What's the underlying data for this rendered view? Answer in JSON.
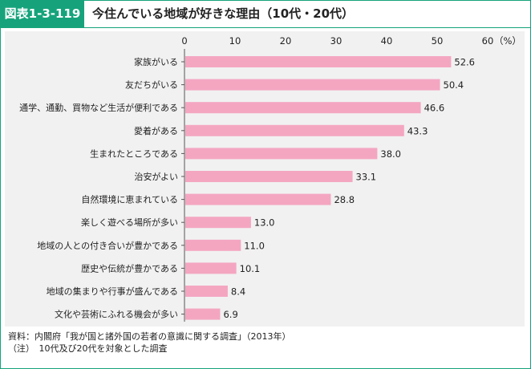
{
  "header": {
    "figure_label": "図表1-3-119",
    "title": "今住んでいる地域が好きな理由（10代・20代）"
  },
  "chart_data": {
    "type": "bar",
    "orientation": "horizontal",
    "unit_label": "（%）",
    "xlim": [
      0,
      60
    ],
    "ticks": [
      0,
      10,
      20,
      30,
      40,
      50,
      60
    ],
    "bar_color": "#f4a6c1",
    "categories": [
      "家族がいる",
      "友だちがいる",
      "通学、通勤、買物など生活が便利である",
      "愛着がある",
      "生まれたところである",
      "治安がよい",
      "自然環境に恵まれている",
      "楽しく遊べる場所が多い",
      "地域の人との付き合いが豊かである",
      "歴史や伝統が豊かである",
      "地域の集まりや行事が盛んである",
      "文化や芸術にふれる機会が多い"
    ],
    "values": [
      52.6,
      50.4,
      46.6,
      43.3,
      38.0,
      33.1,
      28.8,
      13.0,
      11.0,
      10.1,
      8.4,
      6.9
    ],
    "value_labels": [
      "52.6",
      "50.4",
      "46.6",
      "43.3",
      "38.0",
      "33.1",
      "28.8",
      "13.0",
      "11.0",
      "10.1",
      "8.4",
      "6.9"
    ]
  },
  "notes": {
    "source": "資料：内閣府「我が国と諸外国の若者の意識に関する調査」（2013年）",
    "note": "（注）　10代及び20代を対象とした調査"
  },
  "colors": {
    "accent": "#16a37b",
    "panel": "#f1f1f1",
    "bar": "#f4a6c1"
  }
}
